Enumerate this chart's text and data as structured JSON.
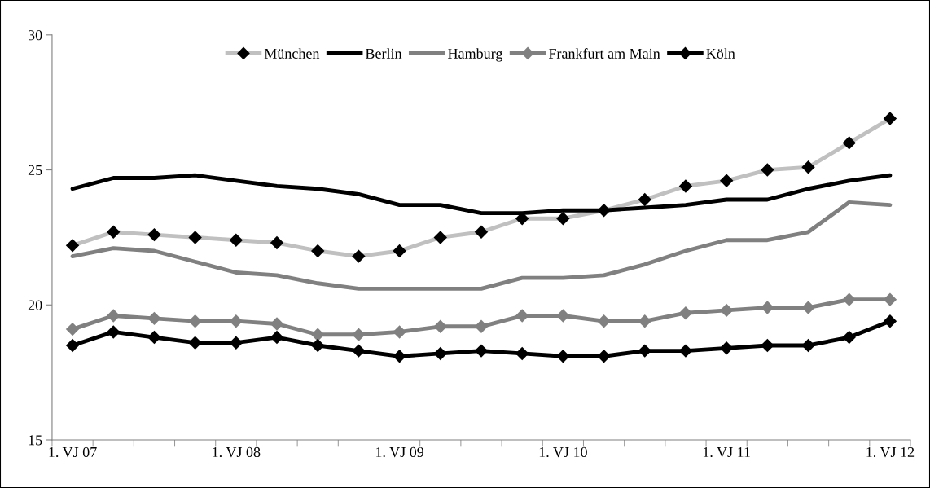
{
  "chart_data": {
    "type": "line",
    "categories": [
      "1. VJ 07",
      null,
      null,
      null,
      "1. VJ 08",
      null,
      null,
      null,
      "1. VJ 09",
      null,
      null,
      null,
      "1. VJ 10",
      null,
      null,
      null,
      "1. VJ 11",
      null,
      null,
      null,
      "1. VJ 12"
    ],
    "series": [
      {
        "name": "München",
        "color": "#c0c0c0",
        "marker": "diamond",
        "colors": [
          "#000000",
          "#000000",
          "#000000",
          "#000000",
          "#000000",
          "#000000",
          "#000000",
          "#000000",
          "#000000",
          "#000000",
          "#000000",
          "#000000",
          "#000000",
          "#000000",
          "#000000",
          "#000000",
          "#000000",
          "#000000",
          "#000000",
          "#000000",
          "#000000"
        ],
        "values": [
          22.2,
          22.7,
          22.6,
          22.5,
          22.4,
          22.3,
          22.0,
          21.8,
          22.0,
          22.5,
          22.7,
          23.2,
          23.2,
          23.5,
          23.9,
          24.4,
          24.6,
          25.0,
          25.1,
          26.0,
          26.9
        ]
      },
      {
        "name": "Berlin",
        "color": "#000000",
        "marker": "none",
        "values": [
          24.3,
          24.7,
          24.7,
          24.8,
          24.6,
          24.4,
          24.3,
          24.1,
          23.7,
          23.7,
          23.4,
          23.4,
          23.5,
          23.5,
          23.6,
          23.7,
          23.9,
          23.9,
          24.3,
          24.6,
          24.8
        ]
      },
      {
        "name": "Hamburg",
        "color": "#808080",
        "marker": "none",
        "values": [
          21.8,
          22.1,
          22.0,
          21.6,
          21.2,
          21.1,
          20.8,
          20.6,
          20.6,
          20.6,
          20.6,
          21.0,
          21.0,
          21.1,
          21.5,
          22.0,
          22.4,
          22.4,
          22.7,
          23.8,
          23.7
        ]
      },
      {
        "name": "Frankfurt am Main",
        "color": "#808080",
        "marker": "diamond",
        "values": [
          19.1,
          19.6,
          19.5,
          19.4,
          19.4,
          19.3,
          18.9,
          18.9,
          19.0,
          19.2,
          19.2,
          19.6,
          19.6,
          19.4,
          19.4,
          19.7,
          19.8,
          19.9,
          19.9,
          20.2,
          20.2
        ]
      },
      {
        "name": "Köln",
        "color": "#000000",
        "marker": "diamond",
        "values": [
          18.5,
          19.0,
          18.8,
          18.6,
          18.6,
          18.8,
          18.5,
          18.3,
          18.1,
          18.2,
          18.3,
          18.2,
          18.1,
          18.1,
          18.3,
          18.3,
          18.4,
          18.5,
          18.5,
          18.8,
          19.4
        ]
      }
    ],
    "ylim": [
      15,
      30
    ],
    "yticks": [
      15,
      20,
      25,
      30
    ],
    "grid": false,
    "legend": "top",
    "line_style": "solid"
  }
}
